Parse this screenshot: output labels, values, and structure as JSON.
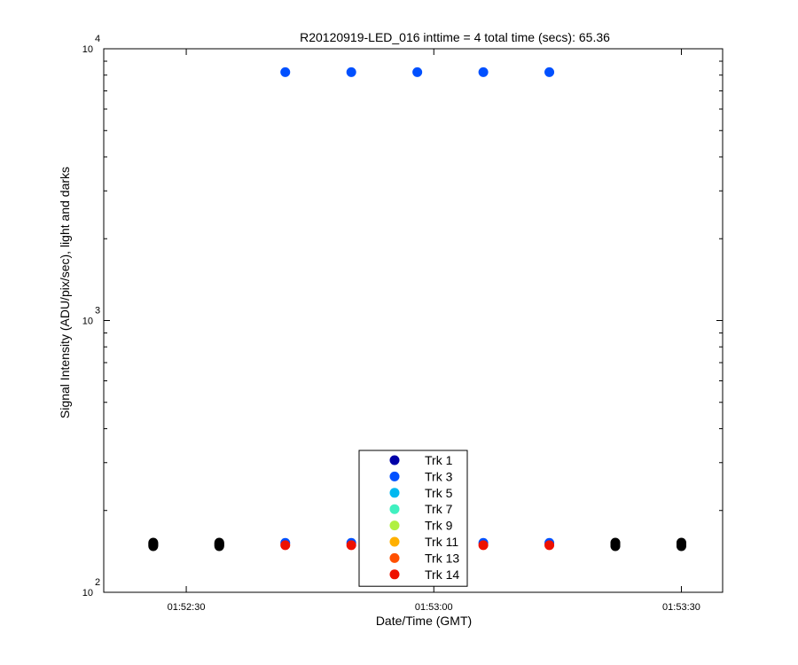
{
  "chart_data": {
    "type": "scatter",
    "title": "R20120919-LED_016 inttime = 4 total time (secs): 65.36",
    "xlabel": "Date/Time (GMT)",
    "ylabel": "Signal Intensity (ADU/pix/sec), light and darks",
    "y_scale": "log",
    "ylim": [
      100,
      10000
    ],
    "xlim": [
      "01:52:20",
      "01:53:35"
    ],
    "x_ticks": [
      "01:52:30",
      "01:53:00",
      "01:53:30"
    ],
    "y_ticks": [
      {
        "base": "10",
        "exp": "2",
        "value": 100
      },
      {
        "base": "10",
        "exp": "3",
        "value": 1000
      },
      {
        "base": "10",
        "exp": "4",
        "value": 10000
      }
    ],
    "grid": false,
    "legend_position": "bottom-center",
    "series": [
      {
        "name": "Trk 1",
        "color": "#0000a8",
        "points": []
      },
      {
        "name": "Trk 3",
        "color": "#0050ff",
        "points": [
          {
            "x": "01:52:42",
            "y": 8200
          },
          {
            "x": "01:52:50",
            "y": 8200
          },
          {
            "x": "01:52:58",
            "y": 8200
          },
          {
            "x": "01:53:06",
            "y": 8200
          },
          {
            "x": "01:53:14",
            "y": 8200
          },
          {
            "x": "01:52:42",
            "y": 152
          },
          {
            "x": "01:52:50",
            "y": 152
          },
          {
            "x": "01:52:58",
            "y": 152
          },
          {
            "x": "01:53:06",
            "y": 152
          },
          {
            "x": "01:53:14",
            "y": 152
          }
        ]
      },
      {
        "name": "Trk 5",
        "color": "#00b8f0",
        "points": []
      },
      {
        "name": "Trk 7",
        "color": "#40f0c0",
        "points": []
      },
      {
        "name": "Trk 9",
        "color": "#b0f040",
        "points": []
      },
      {
        "name": "Trk 11",
        "color": "#ffb000",
        "points": []
      },
      {
        "name": "Trk 13",
        "color": "#ff5000",
        "points": []
      },
      {
        "name": "Trk 14",
        "color": "#ee1100",
        "points": [
          {
            "x": "01:52:42",
            "y": 149
          },
          {
            "x": "01:52:50",
            "y": 149
          },
          {
            "x": "01:52:58",
            "y": 149
          },
          {
            "x": "01:53:06",
            "y": 149
          },
          {
            "x": "01:53:14",
            "y": 149
          }
        ]
      }
    ],
    "darks": {
      "color": "#000000",
      "points": [
        {
          "x": "01:52:26",
          "y": 150
        },
        {
          "x": "01:52:34",
          "y": 150
        },
        {
          "x": "01:53:22",
          "y": 150
        },
        {
          "x": "01:53:30",
          "y": 150
        }
      ]
    }
  }
}
